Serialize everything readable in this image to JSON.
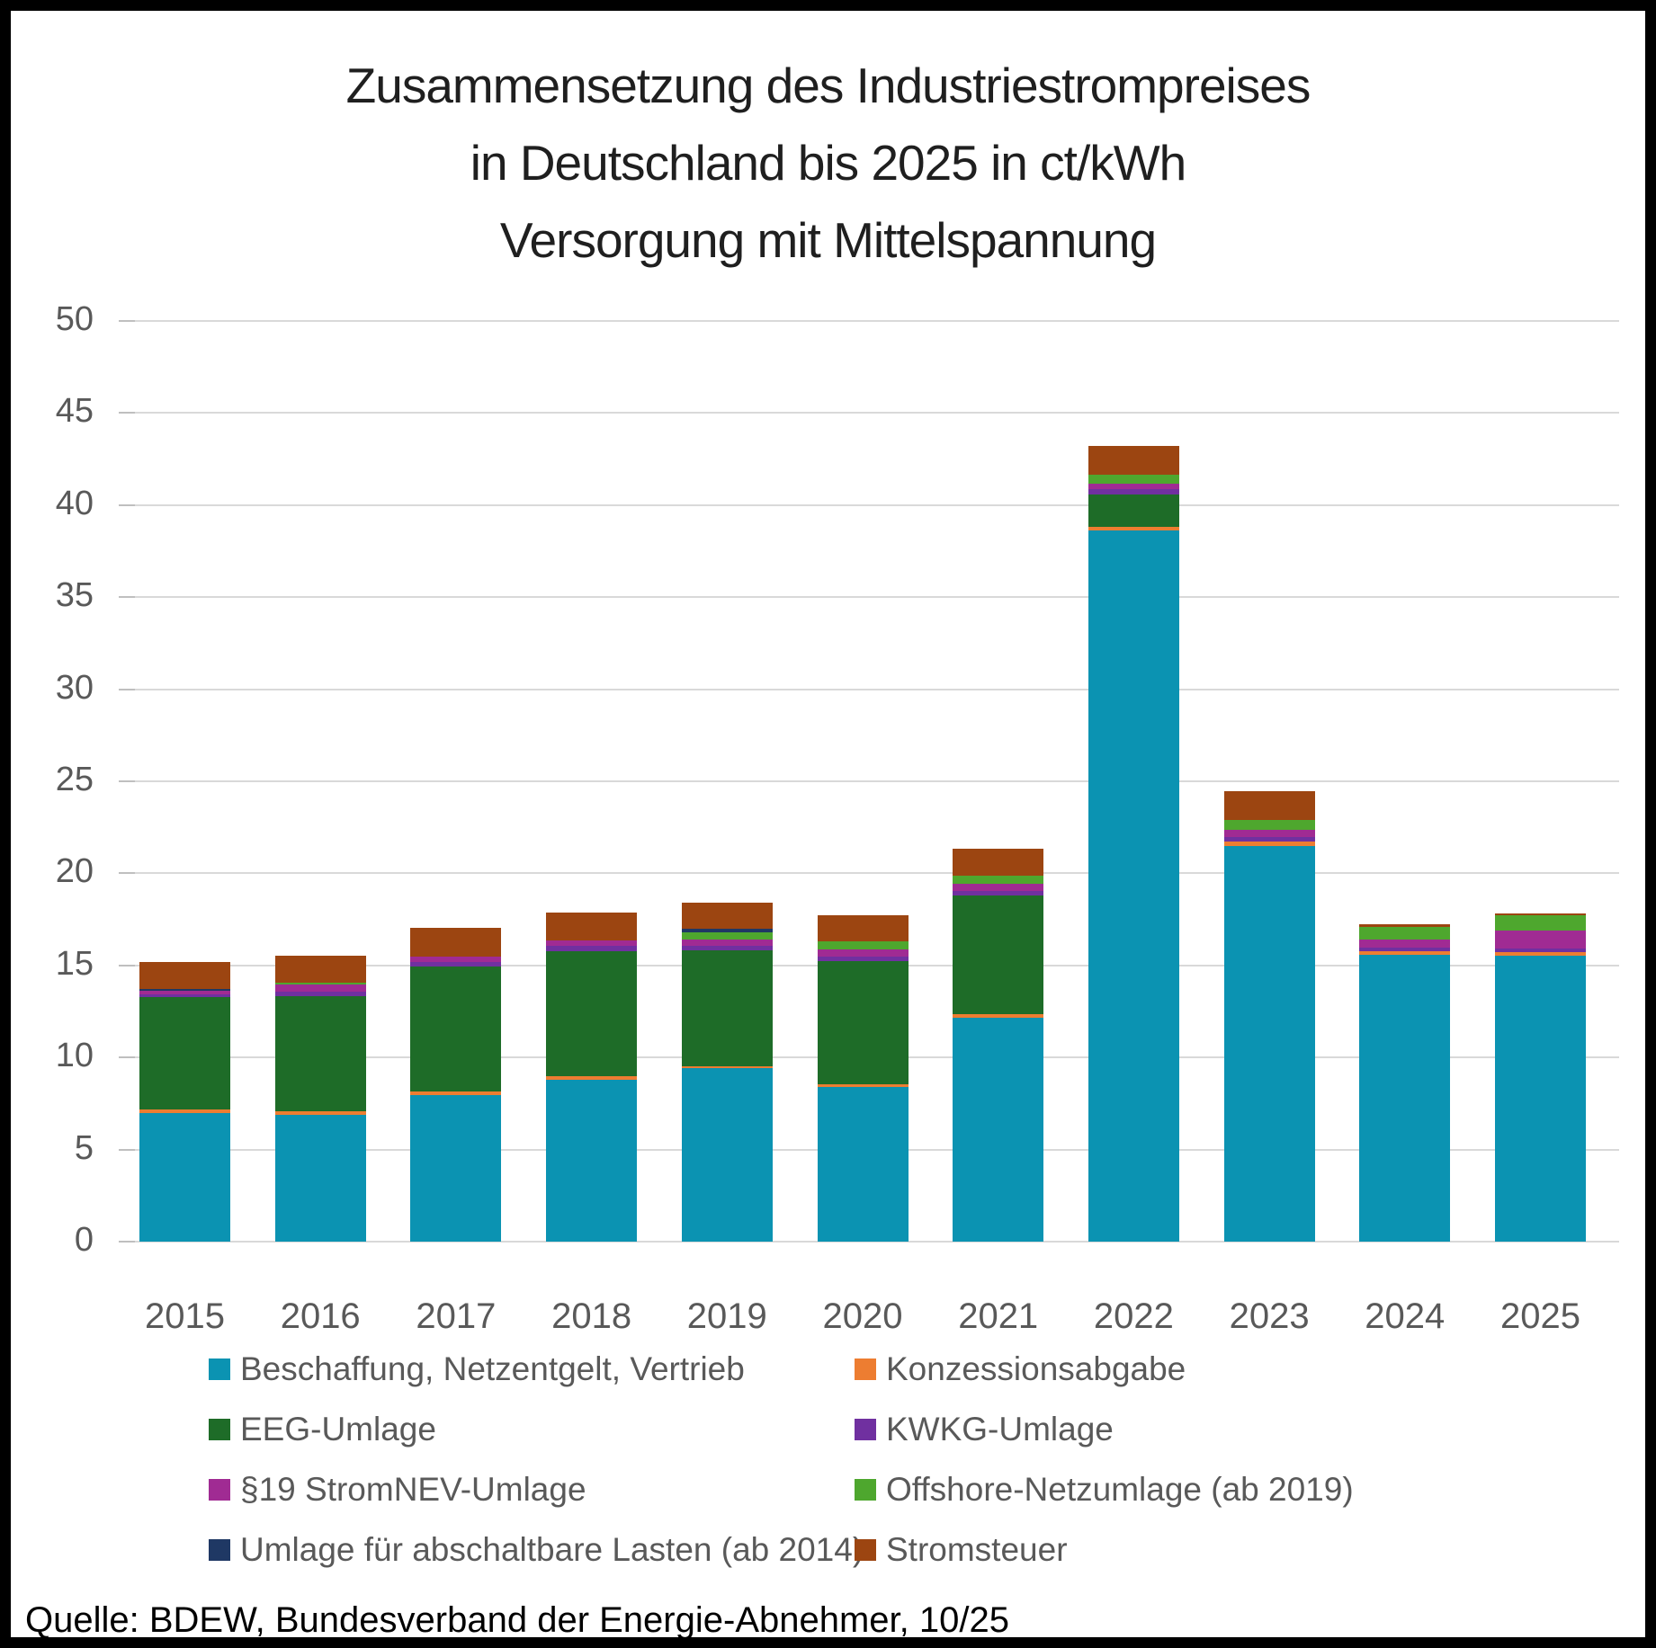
{
  "title": {
    "line1": "Zusammensetzung des Industriestrompreises",
    "line2": "in Deutschland bis 2025 in ct/kWh",
    "line3": "Versorgung mit Mittelspannung"
  },
  "source": "Quelle: BDEW, Bundesverband der Energie-Abnehmer, 10/25",
  "y_axis": {
    "min": 0,
    "max": 50,
    "step": 5,
    "ticks": [
      0,
      5,
      10,
      15,
      20,
      25,
      30,
      35,
      40,
      45,
      50
    ]
  },
  "chart_data": {
    "type": "bar",
    "stacked": true,
    "title": "Zusammensetzung des Industriestrompreises in Deutschland bis 2025 in ct/kWh, Versorgung mit Mittelspannung",
    "xlabel": "",
    "ylabel": "ct/kWh",
    "ylim": [
      0,
      50
    ],
    "grid": true,
    "legend_position": "bottom",
    "legend_columns": 2,
    "categories": [
      "2015",
      "2016",
      "2017",
      "2018",
      "2019",
      "2020",
      "2021",
      "2022",
      "2023",
      "2024",
      "2025"
    ],
    "series": [
      {
        "name": "Beschaffung, Netzentgelt, Vertrieb",
        "color": "#0b93b2",
        "values": [
          7.0,
          6.9,
          7.95,
          8.8,
          9.4,
          8.4,
          12.15,
          38.6,
          21.5,
          15.6,
          15.55
        ]
      },
      {
        "name": "Konzessionsabgabe",
        "color": "#ed7d31",
        "values": [
          0.2,
          0.2,
          0.2,
          0.16,
          0.13,
          0.15,
          0.2,
          0.2,
          0.23,
          0.15,
          0.15
        ]
      },
      {
        "name": "EEG-Umlage",
        "color": "#1e6c28",
        "values": [
          6.1,
          6.25,
          6.8,
          6.8,
          6.3,
          6.7,
          6.45,
          1.8,
          0,
          0,
          0
        ]
      },
      {
        "name": "KWKG-Umlage",
        "color": "#7030a0",
        "values": [
          0.12,
          0.2,
          0.25,
          0.3,
          0.24,
          0.21,
          0.24,
          0.29,
          0.26,
          0.23,
          0.23
        ]
      },
      {
        "name": "§19 StromNEV-Umlage",
        "color": "#a02b93",
        "values": [
          0.2,
          0.4,
          0.3,
          0.28,
          0.33,
          0.41,
          0.37,
          0.28,
          0.36,
          0.45,
          0.98
        ]
      },
      {
        "name": "Offshore-Netzumlage (ab 2019)",
        "color": "#4ea72e",
        "values": [
          0,
          0.1,
          0,
          0,
          0.42,
          0.46,
          0.45,
          0.49,
          0.57,
          0.68,
          0.8
        ]
      },
      {
        "name": "Umlage für abschaltbare Lasten (ab 2014)",
        "color": "#1f3864",
        "values": [
          0.08,
          0,
          0,
          0,
          0.15,
          0,
          0,
          0,
          0,
          0,
          0
        ]
      },
      {
        "name": "Stromsteuer",
        "color": "#9c4511",
        "values": [
          1.5,
          1.5,
          1.55,
          1.55,
          1.43,
          1.41,
          1.5,
          1.56,
          1.54,
          0.12,
          0.11
        ]
      }
    ],
    "totals": [
      15.2,
      15.55,
      17.05,
      17.89,
      18.4,
      17.74,
      21.36,
      43.22,
      24.46,
      17.23,
      17.82
    ]
  }
}
